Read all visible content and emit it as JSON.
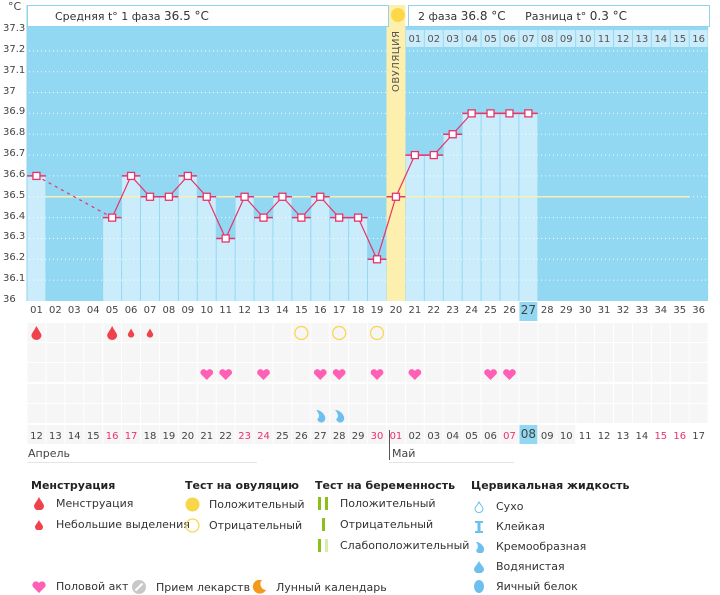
{
  "unit_label": "°C",
  "header": {
    "phase1_label": "Средняя t° 1 фаза",
    "phase1_value": "36.5 °C",
    "phase2_label": "2 фаза",
    "phase2_value": "36.8 °C",
    "diff_label": "Разница t°",
    "diff_value": "0.3 °C",
    "ovulation_label": "ОВУЛЯЦИЯ"
  },
  "colors": {
    "bg_blue": "#92d8f2",
    "bar_light": "#cbedfb",
    "ovulation": "#fdefae",
    "line": "#e8336a",
    "avg_line": "#f7f0b0",
    "heart": "#ff5fb4",
    "drop": "#f0424a",
    "ovtest": "#f9d54a",
    "cervical": "#6cbfee",
    "weekend": "#e8336a",
    "highlight": "#92d8f2"
  },
  "chart_data": {
    "type": "line",
    "title": "",
    "ylabel": "°C",
    "ylim": [
      36.0,
      37.3
    ],
    "yticks": [
      "37.3",
      "37.2",
      "37.1",
      "37",
      "36.9",
      "36.8",
      "36.7",
      "36.6",
      "36.5",
      "36.4",
      "36.3",
      "36.2",
      "36.1",
      "36"
    ],
    "cycle_days": [
      "01",
      "02",
      "03",
      "04",
      "05",
      "06",
      "07",
      "08",
      "09",
      "10",
      "11",
      "12",
      "13",
      "14",
      "15",
      "16",
      "17",
      "18",
      "19",
      "20",
      "21",
      "22",
      "23",
      "24",
      "25",
      "26",
      "27",
      "28",
      "29",
      "30",
      "31",
      "32",
      "33",
      "34",
      "35",
      "36"
    ],
    "post_ovulation_days": [
      "01",
      "02",
      "03",
      "04",
      "05",
      "06",
      "07",
      "08",
      "09",
      "10",
      "11",
      "12",
      "13",
      "14",
      "15",
      "16"
    ],
    "calendar_dates": [
      "12",
      "13",
      "14",
      "15",
      "16",
      "17",
      "18",
      "19",
      "20",
      "21",
      "22",
      "23",
      "24",
      "25",
      "26",
      "27",
      "28",
      "29",
      "30",
      "01",
      "02",
      "03",
      "04",
      "05",
      "06",
      "07",
      "08",
      "09",
      "10",
      "11",
      "12",
      "13",
      "14",
      "15",
      "16",
      "17"
    ],
    "weekend_indices": [
      4,
      5,
      11,
      12,
      18,
      19,
      25,
      33,
      34
    ],
    "months": [
      {
        "label": "Апрель",
        "start_index": 0
      },
      {
        "label": "Май",
        "start_index": 19
      }
    ],
    "current_day_index": 26,
    "ovulation_day_index": 19,
    "temperatures": [
      36.6,
      null,
      null,
      null,
      36.4,
      36.6,
      36.5,
      36.5,
      36.6,
      36.5,
      36.3,
      36.5,
      36.4,
      36.5,
      36.4,
      36.5,
      36.4,
      36.4,
      36.2,
      36.5,
      36.7,
      36.7,
      36.8,
      36.9,
      36.9,
      36.9,
      36.9
    ],
    "coverline": 36.5,
    "coverline_span": [
      1,
      35
    ],
    "rows": {
      "menstruation": [
        {
          "day": 1,
          "type": "heavy"
        },
        {
          "day": 5,
          "type": "heavy"
        },
        {
          "day": 6,
          "type": "light"
        },
        {
          "day": 7,
          "type": "light"
        }
      ],
      "ovulation_test": [
        {
          "day": 15,
          "type": "negative"
        },
        {
          "day": 17,
          "type": "negative"
        },
        {
          "day": 19,
          "type": "negative"
        }
      ],
      "pregnancy_test": [],
      "intercourse": [
        10,
        11,
        13,
        16,
        17,
        19,
        21,
        25,
        26
      ],
      "other": [],
      "cervical": [
        {
          "day": 16,
          "type": "creamy"
        },
        {
          "day": 17,
          "type": "creamy"
        }
      ]
    }
  },
  "legend": {
    "menstruation": {
      "title": "Менструация",
      "items": [
        "Менструация",
        "Небольшие выделения"
      ]
    },
    "ovulation_test": {
      "title": "Тест на овуляцию",
      "items": [
        "Положительный",
        "Отрицательный"
      ]
    },
    "pregnancy_test": {
      "title": "Тест на беременность",
      "items": [
        "Положительный",
        "Отрицательный",
        "Слабоположительный"
      ]
    },
    "cervical": {
      "title": "Цервикальная жидкость",
      "items": [
        "Сухо",
        "Клейкая",
        "Кремообразная",
        "Водянистая",
        "Яичный белок"
      ]
    },
    "bottom": [
      "Половой акт",
      "Прием лекарств",
      "Лунный календарь"
    ]
  }
}
